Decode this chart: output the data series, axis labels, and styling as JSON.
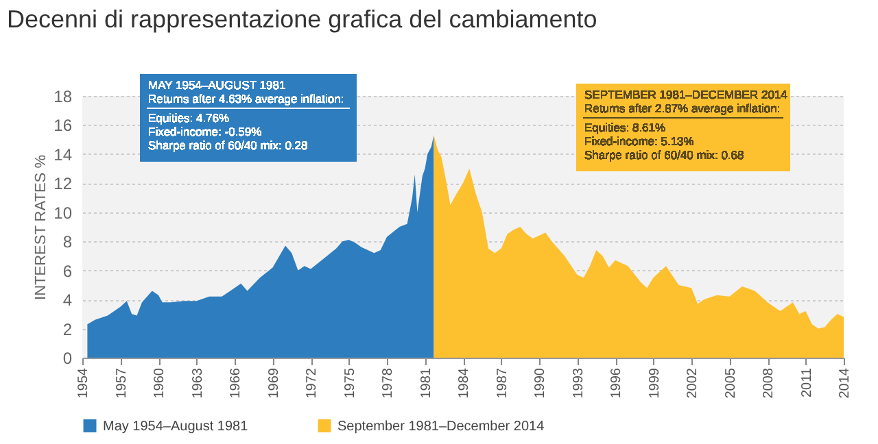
{
  "chart_data": {
    "type": "area",
    "title": "Decenni di rappresentazione grafica del cambiamento",
    "ylabel": "INTEREST RATES %",
    "xlim": [
      1954,
      2014
    ],
    "xticks": [
      1954,
      1957,
      1960,
      1963,
      1966,
      1969,
      1972,
      1975,
      1978,
      1981,
      1984,
      1987,
      1990,
      1993,
      1996,
      1999,
      2002,
      2005,
      2008,
      2011,
      2014
    ],
    "ylim": [
      0,
      18
    ],
    "yticks": [
      0,
      2,
      4,
      6,
      8,
      10,
      12,
      14,
      16,
      18
    ],
    "grid": "y",
    "legend": "bottom",
    "annotations": [
      "MAY 1954–AUGUST 1981",
      "Returns after 4.63% average inflation:",
      "Equities: 4.76%\nFixed-income: -0.59%\nSharpe ratio of 60/40 mix: 0.28",
      "SEPTEMBER 1981–DECEMBER 2014",
      "Returns after 2.87% average inflation:",
      "Equities: 8.61%\nFixed-income: 5.13%\nSharpe ratio of 60/40 mix: 0.68"
    ],
    "series": [
      {
        "name": "May 1954–August 1981",
        "color": "#2e7ebf",
        "x": [
          1954.4,
          1955,
          1956,
          1957,
          1957.5,
          1957.9,
          1958.3,
          1958.7,
          1959.5,
          1960,
          1960.3,
          1961,
          1962,
          1963,
          1964,
          1965,
          1966,
          1966.5,
          1967,
          1968,
          1969,
          1970,
          1970.5,
          1971,
          1971.5,
          1972,
          1973,
          1974,
          1974.5,
          1975,
          1975.5,
          1976,
          1977,
          1977.5,
          1978,
          1979,
          1979.6,
          1980,
          1980.2,
          1980.4,
          1980.8,
          1981,
          1981.2,
          1981.5,
          1981.7
        ],
        "values": [
          2.3,
          2.6,
          2.9,
          3.5,
          3.9,
          3.0,
          2.9,
          3.8,
          4.6,
          4.3,
          3.8,
          3.8,
          3.9,
          3.9,
          4.2,
          4.2,
          4.8,
          5.1,
          4.6,
          5.5,
          6.2,
          7.7,
          7.2,
          6.0,
          6.3,
          6.1,
          6.8,
          7.5,
          8.0,
          8.1,
          7.9,
          7.6,
          7.2,
          7.4,
          8.3,
          9.0,
          9.2,
          11.0,
          12.6,
          10.0,
          12.5,
          13.0,
          14.0,
          14.5,
          15.3
        ]
      },
      {
        "name": "September 1981–December 2014",
        "color": "#fdc02f",
        "x": [
          1981.7,
          1982,
          1982.3,
          1982.7,
          1983,
          1983.5,
          1984,
          1984.5,
          1985,
          1985.5,
          1986,
          1986.5,
          1987,
          1987.5,
          1988,
          1988.5,
          1989,
          1989.5,
          1990,
          1990.5,
          1991,
          1992,
          1993,
          1993.5,
          1994,
          1994.5,
          1995,
          1995.5,
          1996,
          1997,
          1998,
          1998.5,
          1999,
          2000,
          2001,
          2002,
          2002.5,
          2003,
          2004,
          2005,
          2006,
          2007,
          2008,
          2008.5,
          2009,
          2010,
          2010.5,
          2011,
          2011.5,
          2012,
          2012.5,
          2013,
          2013.5,
          2014
        ],
        "values": [
          15.3,
          14.3,
          13.8,
          12.0,
          10.5,
          11.3,
          12.0,
          13.0,
          11.3,
          10.0,
          7.5,
          7.2,
          7.5,
          8.5,
          8.8,
          9.0,
          8.5,
          8.2,
          8.4,
          8.6,
          8.0,
          7.0,
          5.7,
          5.5,
          6.3,
          7.4,
          7.0,
          6.2,
          6.7,
          6.3,
          5.2,
          4.8,
          5.5,
          6.3,
          5.0,
          4.8,
          3.7,
          4.0,
          4.3,
          4.2,
          4.9,
          4.6,
          3.8,
          3.5,
          3.2,
          3.8,
          3.0,
          3.2,
          2.3,
          2.0,
          2.1,
          2.6,
          3.0,
          2.8
        ]
      }
    ]
  }
}
